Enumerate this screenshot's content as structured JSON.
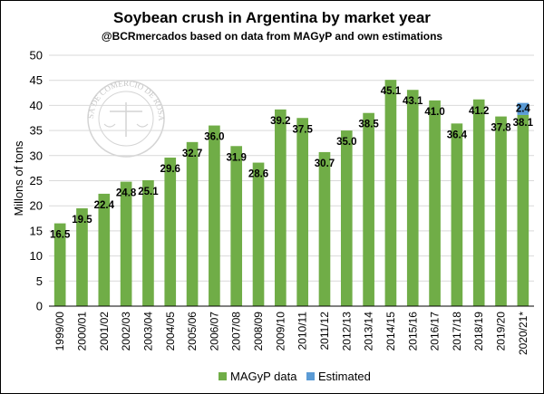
{
  "chart_data": {
    "type": "bar",
    "title": "Soybean crush in Argentina by market year",
    "subtitle": "@BCRmercados based on data from MAGyP and own estimations",
    "ylabel": "Millons of tons",
    "xlabel": "",
    "ylim": [
      0,
      50
    ],
    "yticks": [
      0,
      5,
      10,
      15,
      20,
      25,
      30,
      35,
      40,
      45,
      50
    ],
    "grid": true,
    "legend_position": "bottom",
    "categories": [
      "1999/00",
      "2000/01",
      "2001/02",
      "2002/03",
      "2003/04",
      "2004/05",
      "2005/06",
      "2006/07",
      "2007/08",
      "2008/09",
      "2009/10",
      "2010/11",
      "2011/12",
      "2012/13",
      "2013/14",
      "2014/15",
      "2015/16",
      "2016/17",
      "2017/18",
      "2018/19",
      "2019/20",
      "2020/21*"
    ],
    "series": [
      {
        "name": "MAGyP data",
        "color": "#70ad47",
        "values": [
          16.5,
          19.5,
          22.4,
          24.8,
          25.1,
          29.6,
          32.7,
          36.0,
          31.9,
          28.6,
          39.2,
          37.5,
          30.7,
          35.0,
          38.5,
          45.1,
          43.1,
          41.0,
          36.4,
          41.2,
          37.8,
          38.1
        ],
        "labels": [
          "16.5",
          "19.5",
          "22.4",
          "24.8",
          "25.1",
          "29.6",
          "32.7",
          "36.0",
          "31.9",
          "28.6",
          "39.2",
          "37.5",
          "30.7",
          "35.0",
          "38.5",
          "45.1",
          "43.1",
          "41.0",
          "36.4",
          "41.2",
          "37.8",
          "38.1"
        ]
      },
      {
        "name": "Estimated",
        "color": "#5b9bd5",
        "values": [
          null,
          null,
          null,
          null,
          null,
          null,
          null,
          null,
          null,
          null,
          null,
          null,
          null,
          null,
          null,
          null,
          null,
          null,
          null,
          null,
          null,
          2.4
        ],
        "labels": [
          null,
          null,
          null,
          null,
          null,
          null,
          null,
          null,
          null,
          null,
          null,
          null,
          null,
          null,
          null,
          null,
          null,
          null,
          null,
          null,
          null,
          "2.4"
        ]
      }
    ]
  },
  "watermark": {
    "text": "BOLSA DE COMERCIO DE ROSARIO"
  }
}
